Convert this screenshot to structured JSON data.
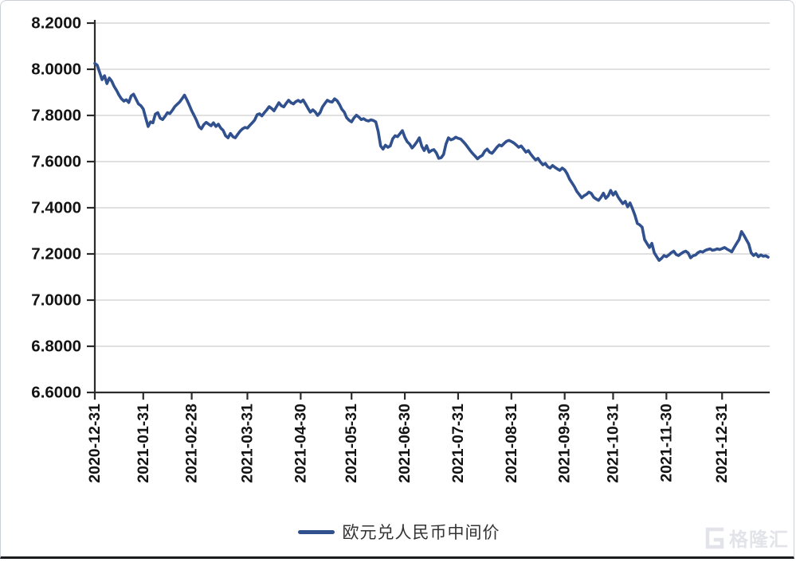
{
  "chart_data": {
    "type": "line",
    "title": "",
    "ylim": [
      6.6,
      8.2
    ],
    "y_tick_labels": [
      "8.2000",
      "8.0000",
      "7.8000",
      "7.6000",
      "7.4000",
      "7.2000",
      "7.0000",
      "6.8000",
      "6.6000"
    ],
    "y_tick_values": [
      8.2,
      8.0,
      7.8,
      7.6,
      7.4,
      7.2,
      7.0,
      6.8,
      6.6
    ],
    "x_tick_labels": [
      "2020-12-31",
      "2021-01-31",
      "2021-02-28",
      "2021-03-31",
      "2021-04-30",
      "2021-05-31",
      "2021-06-30",
      "2021-07-31",
      "2021-08-31",
      "2021-09-30",
      "2021-10-31",
      "2021-11-30",
      "2021-12-31"
    ],
    "x_tick_indices": [
      0,
      20,
      40,
      63,
      85,
      106,
      128,
      150,
      172,
      194,
      214,
      236,
      259
    ],
    "grid": "horizontal-light",
    "legend_position": "bottom-center",
    "colors": {
      "line": "#30508e",
      "axis": "#2b2b2b",
      "grid": "#d6d6d6",
      "tick_label": "#141414",
      "watermark": "#e3e4ea"
    },
    "series": [
      {
        "name": "欧元兑人民币中间价",
        "color": "#30508e",
        "values": [
          8.025,
          8.018,
          7.986,
          7.955,
          7.972,
          7.938,
          7.962,
          7.948,
          7.925,
          7.908,
          7.888,
          7.872,
          7.862,
          7.868,
          7.856,
          7.884,
          7.892,
          7.871,
          7.85,
          7.842,
          7.828,
          7.79,
          7.752,
          7.772,
          7.768,
          7.806,
          7.812,
          7.788,
          7.782,
          7.796,
          7.812,
          7.808,
          7.822,
          7.838,
          7.848,
          7.858,
          7.872,
          7.888,
          7.868,
          7.845,
          7.82,
          7.8,
          7.778,
          7.752,
          7.742,
          7.76,
          7.77,
          7.762,
          7.755,
          7.768,
          7.752,
          7.762,
          7.745,
          7.735,
          7.712,
          7.703,
          7.722,
          7.708,
          7.703,
          7.718,
          7.732,
          7.742,
          7.748,
          7.745,
          7.757,
          7.768,
          7.78,
          7.803,
          7.807,
          7.798,
          7.812,
          7.824,
          7.838,
          7.83,
          7.82,
          7.838,
          7.855,
          7.842,
          7.837,
          7.852,
          7.866,
          7.855,
          7.85,
          7.86,
          7.865,
          7.858,
          7.867,
          7.85,
          7.831,
          7.814,
          7.824,
          7.815,
          7.8,
          7.812,
          7.837,
          7.852,
          7.866,
          7.86,
          7.858,
          7.872,
          7.864,
          7.848,
          7.827,
          7.814,
          7.79,
          7.779,
          7.772,
          7.789,
          7.801,
          7.793,
          7.782,
          7.786,
          7.779,
          7.776,
          7.781,
          7.778,
          7.772,
          7.731,
          7.668,
          7.654,
          7.671,
          7.662,
          7.668,
          7.699,
          7.712,
          7.708,
          7.721,
          7.734,
          7.705,
          7.686,
          7.676,
          7.659,
          7.671,
          7.686,
          7.703,
          7.667,
          7.648,
          7.669,
          7.641,
          7.648,
          7.652,
          7.638,
          7.614,
          7.617,
          7.631,
          7.676,
          7.703,
          7.694,
          7.698,
          7.706,
          7.701,
          7.698,
          7.688,
          7.676,
          7.662,
          7.648,
          7.635,
          7.624,
          7.612,
          7.621,
          7.627,
          7.645,
          7.654,
          7.641,
          7.636,
          7.648,
          7.662,
          7.672,
          7.668,
          7.679,
          7.688,
          7.692,
          7.687,
          7.681,
          7.672,
          7.662,
          7.668,
          7.655,
          7.641,
          7.648,
          7.632,
          7.619,
          7.607,
          7.614,
          7.598,
          7.586,
          7.592,
          7.578,
          7.572,
          7.583,
          7.575,
          7.568,
          7.562,
          7.572,
          7.564,
          7.548,
          7.524,
          7.508,
          7.492,
          7.471,
          7.458,
          7.443,
          7.452,
          7.458,
          7.468,
          7.462,
          7.445,
          7.438,
          7.432,
          7.446,
          7.463,
          7.441,
          7.452,
          7.475,
          7.455,
          7.469,
          7.448,
          7.432,
          7.418,
          7.428,
          7.404,
          7.421,
          7.396,
          7.368,
          7.332,
          7.326,
          7.316,
          7.262,
          7.245,
          7.228,
          7.246,
          7.205,
          7.188,
          7.172,
          7.181,
          7.193,
          7.188,
          7.196,
          7.205,
          7.212,
          7.198,
          7.193,
          7.201,
          7.208,
          7.212,
          7.204,
          7.183,
          7.192,
          7.195,
          7.205,
          7.211,
          7.208,
          7.215,
          7.219,
          7.222,
          7.216,
          7.218,
          7.222,
          7.219,
          7.223,
          7.228,
          7.221,
          7.215,
          7.209,
          7.228,
          7.246,
          7.262,
          7.297,
          7.281,
          7.262,
          7.243,
          7.205,
          7.193,
          7.201,
          7.188,
          7.196,
          7.19,
          7.192,
          7.186
        ]
      }
    ]
  },
  "legend": {
    "label": "欧元兑人民币中间价"
  },
  "watermark": {
    "text": "格隆汇"
  }
}
